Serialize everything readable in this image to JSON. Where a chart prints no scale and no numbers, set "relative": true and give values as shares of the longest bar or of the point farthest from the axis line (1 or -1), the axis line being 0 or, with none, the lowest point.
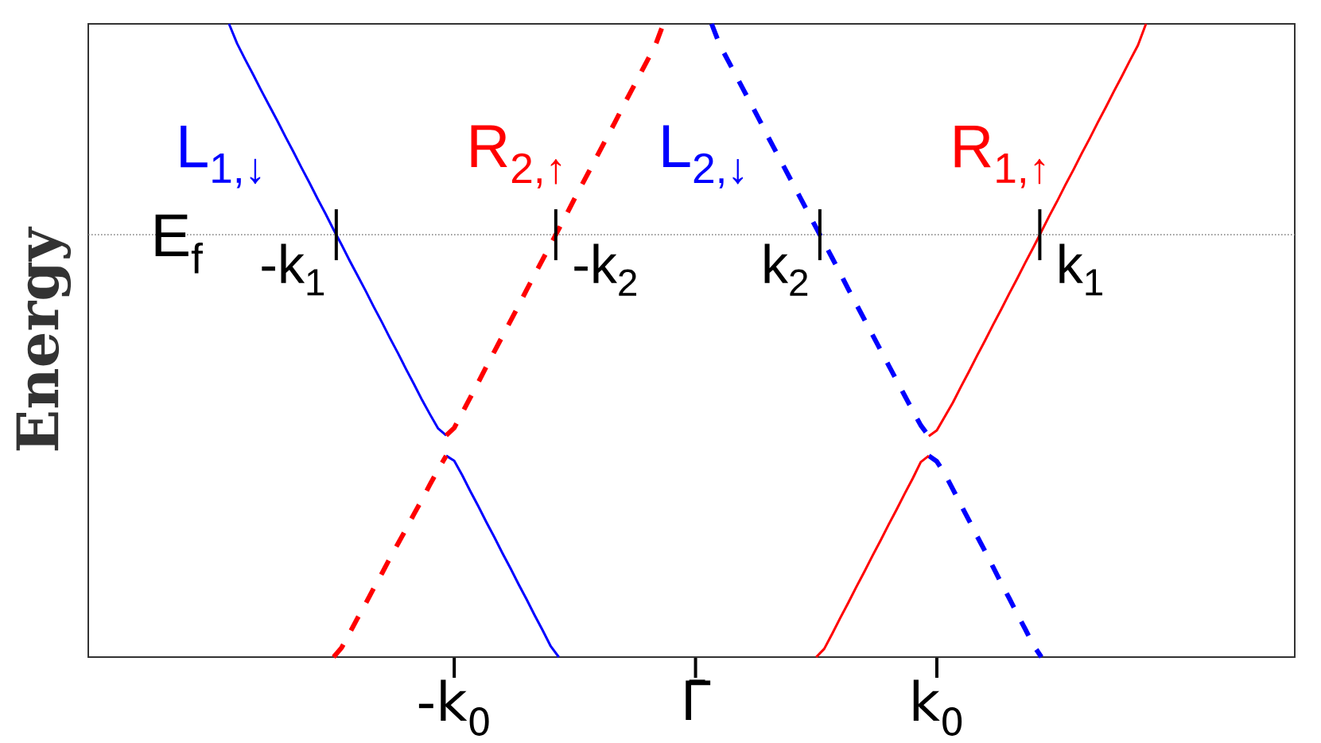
{
  "chart_data": {
    "type": "line",
    "relative": true,
    "ylabel": "Energy",
    "categories": [
      null,
      null,
      null,
      null,
      null,
      null,
      null,
      null,
      null,
      null,
      null,
      null,
      null,
      null,
      null,
      null,
      null,
      null,
      null,
      null,
      null,
      null,
      null,
      null,
      null,
      null,
      null,
      null,
      null,
      null,
      null,
      null,
      null,
      null,
      null,
      null,
      null,
      null,
      null,
      null,
      null,
      null,
      null,
      null,
      null,
      "-k$_{0}$",
      null,
      null,
      null,
      null,
      null,
      null,
      null,
      null,
      null,
      null,
      null,
      null,
      null,
      null,
      null,
      null,
      null,
      null,
      null,
      null,
      null,
      null,
      null,
      null,
      null,
      null,
      null,
      null,
      null,
      "Γ̄",
      null,
      null,
      null,
      null,
      null,
      null,
      null,
      null,
      null,
      null,
      null,
      null,
      null,
      null,
      null,
      null,
      null,
      null,
      null,
      null,
      null,
      null,
      null,
      null,
      null,
      null,
      null,
      null,
      null,
      "k$_{0}$",
      null,
      null,
      null,
      null,
      null,
      null,
      null,
      null,
      null,
      null,
      null,
      null,
      null,
      null,
      null,
      null,
      null,
      null,
      null,
      null,
      null,
      null,
      null,
      null,
      null,
      null,
      null,
      null,
      null,
      null,
      null,
      null,
      null,
      null,
      null,
      null,
      null,
      null,
      null,
      null,
      null,
      null,
      null,
      null
    ],
    "series": [
      {
        "name": "L$_{1,↓}$",
        "color": "#0000ff",
        "line_style": "solid",
        "values": [
          null,
          null,
          null,
          null,
          null,
          null,
          null,
          null,
          null,
          null,
          null,
          null,
          null,
          null,
          null,
          null,
          null,
          1.0,
          0.969,
          0.944,
          0.92,
          0.895,
          0.871,
          0.847,
          0.822,
          0.798,
          0.773,
          0.749,
          0.724,
          0.7,
          0.675,
          0.651,
          0.626,
          0.602,
          0.578,
          0.553,
          0.529,
          0.504,
          0.48,
          0.455,
          0.431,
          0.406,
          0.383,
          0.361,
          0.35,
          null,
          null,
          null,
          null,
          null,
          null,
          null,
          null,
          null,
          null,
          null,
          null,
          null,
          null,
          null,
          null,
          null,
          null,
          null,
          null,
          null,
          null,
          null,
          null,
          null,
          null,
          null,
          null,
          null,
          null,
          null,
          null,
          null,
          null,
          null,
          null,
          null,
          null,
          null,
          null,
          null,
          null,
          null,
          null,
          null,
          null,
          null,
          null,
          null,
          null,
          null,
          null,
          null,
          null,
          null,
          null,
          null,
          null,
          null,
          null,
          null,
          null,
          null,
          null,
          null,
          null,
          null,
          null,
          null,
          null,
          null,
          null,
          null,
          null,
          null,
          null,
          null,
          null,
          null,
          null,
          null,
          null,
          null,
          null,
          null,
          null,
          null,
          null,
          null,
          null,
          null,
          null,
          null,
          null,
          null,
          null,
          null,
          null,
          null,
          null,
          null,
          null,
          null,
          null,
          null
        ]
      },
      {
        "color": "#0000ff",
        "line_style": "solid",
        "values": [
          null,
          null,
          null,
          null,
          null,
          null,
          null,
          null,
          null,
          null,
          null,
          null,
          null,
          null,
          null,
          null,
          null,
          null,
          null,
          null,
          null,
          null,
          null,
          null,
          null,
          null,
          null,
          null,
          null,
          null,
          null,
          null,
          null,
          null,
          null,
          null,
          null,
          null,
          null,
          null,
          null,
          null,
          null,
          null,
          0.318,
          0.31,
          0.287,
          0.262,
          0.238,
          0.213,
          0.189,
          0.164,
          0.14,
          0.115,
          0.091,
          0.066,
          0.042,
          0.017,
          0,
          null,
          null,
          null,
          null,
          null,
          null,
          null,
          null,
          null,
          null,
          null,
          null,
          null,
          null,
          null,
          null,
          null,
          null,
          null,
          null,
          null,
          null,
          null,
          null,
          null,
          null,
          null,
          null,
          null,
          null,
          null,
          null,
          null,
          null,
          null,
          null,
          null,
          null,
          null,
          null,
          null,
          null,
          null,
          null,
          null,
          null,
          null,
          null,
          null,
          null,
          null,
          null,
          null,
          null,
          null,
          null,
          null,
          null,
          null,
          null,
          null,
          null,
          null,
          null,
          null,
          null,
          null,
          null,
          null,
          null,
          null,
          null,
          null,
          null,
          null,
          null,
          null,
          null,
          null,
          null,
          null,
          null,
          null,
          null,
          null,
          null,
          null,
          null,
          null,
          null,
          null
        ]
      },
      {
        "name": "R$_{2,↑}$",
        "color": "#ff0000",
        "line_style": "dashed",
        "values": [
          null,
          null,
          null,
          null,
          null,
          null,
          null,
          null,
          null,
          null,
          null,
          null,
          null,
          null,
          null,
          null,
          null,
          null,
          null,
          null,
          null,
          null,
          null,
          null,
          null,
          null,
          null,
          null,
          null,
          null,
          null,
          null,
          null,
          null,
          null,
          null,
          null,
          null,
          null,
          null,
          null,
          null,
          null,
          null,
          0.35,
          0.362,
          0.386,
          0.41,
          0.434,
          0.459,
          0.483,
          0.507,
          0.531,
          0.555,
          0.58,
          0.604,
          0.628,
          0.652,
          0.676,
          0.7,
          0.725,
          0.749,
          0.773,
          0.797,
          0.821,
          0.845,
          0.87,
          0.894,
          0.918,
          0.942,
          0.966,
          1.0,
          null,
          null,
          null,
          null,
          null,
          null,
          null,
          null,
          null,
          null,
          null,
          null,
          null,
          null,
          null,
          null,
          null,
          null,
          null,
          null,
          null,
          null,
          null,
          null,
          null,
          null,
          null,
          null,
          null,
          null,
          null,
          null,
          null,
          null,
          null,
          null,
          null,
          null,
          null,
          null,
          null,
          null,
          null,
          null,
          null,
          null,
          null,
          null,
          null,
          null,
          null,
          null,
          null,
          null,
          null,
          null,
          null,
          null,
          null,
          null,
          null,
          null,
          null,
          null,
          null,
          null,
          null,
          null,
          null,
          null,
          null,
          null,
          null,
          null,
          null,
          null,
          null,
          null
        ]
      },
      {
        "color": "#ff0000",
        "line_style": "dashed",
        "values": [
          null,
          null,
          null,
          null,
          null,
          null,
          null,
          null,
          null,
          null,
          null,
          null,
          null,
          null,
          null,
          null,
          null,
          null,
          null,
          null,
          null,
          null,
          null,
          null,
          null,
          null,
          null,
          null,
          null,
          null,
          0,
          0.015,
          0.038,
          0.062,
          0.085,
          0.109,
          0.132,
          0.156,
          0.179,
          0.202,
          0.226,
          0.249,
          0.273,
          0.296,
          0.318,
          null,
          null,
          null,
          null,
          null,
          null,
          null,
          null,
          null,
          null,
          null,
          null,
          null,
          null,
          null,
          null,
          null,
          null,
          null,
          null,
          null,
          null,
          null,
          null,
          null,
          null,
          null,
          null,
          null,
          null,
          null,
          null,
          null,
          null,
          null,
          null,
          null,
          null,
          null,
          null,
          null,
          null,
          null,
          null,
          null,
          null,
          null,
          null,
          null,
          null,
          null,
          null,
          null,
          null,
          null,
          null,
          null,
          null,
          null,
          null,
          null,
          null,
          null,
          null,
          null,
          null,
          null,
          null,
          null,
          null,
          null,
          null,
          null,
          null,
          null,
          null,
          null,
          null,
          null,
          null,
          null,
          null,
          null,
          null,
          null,
          null,
          null,
          null,
          null,
          null,
          null,
          null,
          null,
          null,
          null,
          null,
          null,
          null,
          null,
          null,
          null,
          null,
          null,
          null,
          null
        ]
      },
      {
        "name": "L$_{2,↓}$",
        "color": "#0000ff",
        "line_style": "dashed",
        "values": [
          null,
          null,
          null,
          null,
          null,
          null,
          null,
          null,
          null,
          null,
          null,
          null,
          null,
          null,
          null,
          null,
          null,
          null,
          null,
          null,
          null,
          null,
          null,
          null,
          null,
          null,
          null,
          null,
          null,
          null,
          null,
          null,
          null,
          null,
          null,
          null,
          null,
          null,
          null,
          null,
          null,
          null,
          null,
          null,
          null,
          null,
          null,
          null,
          null,
          null,
          null,
          null,
          null,
          null,
          null,
          null,
          null,
          null,
          null,
          null,
          null,
          null,
          null,
          null,
          null,
          null,
          null,
          null,
          null,
          null,
          null,
          null,
          null,
          null,
          null,
          null,
          null,
          1.0,
          0.967,
          0.943,
          0.919,
          0.895,
          0.871,
          0.847,
          0.822,
          0.798,
          0.774,
          0.75,
          0.726,
          0.702,
          0.678,
          0.654,
          0.63,
          0.606,
          0.581,
          0.557,
          0.533,
          0.509,
          0.485,
          0.461,
          0.437,
          0.413,
          0.389,
          0.366,
          0.349,
          null,
          null,
          null,
          null,
          null,
          null,
          null,
          null,
          null,
          null,
          null,
          null,
          null,
          null,
          null,
          null,
          null,
          null,
          null,
          null,
          null,
          null,
          null,
          null,
          null,
          null,
          null,
          null,
          null,
          null,
          null,
          null,
          null,
          null,
          null,
          null,
          null,
          null,
          null,
          null,
          null,
          null,
          null,
          null,
          null
        ]
      },
      {
        "color": "#0000ff",
        "line_style": "dashed",
        "values": [
          null,
          null,
          null,
          null,
          null,
          null,
          null,
          null,
          null,
          null,
          null,
          null,
          null,
          null,
          null,
          null,
          null,
          null,
          null,
          null,
          null,
          null,
          null,
          null,
          null,
          null,
          null,
          null,
          null,
          null,
          null,
          null,
          null,
          null,
          null,
          null,
          null,
          null,
          null,
          null,
          null,
          null,
          null,
          null,
          null,
          null,
          null,
          null,
          null,
          null,
          null,
          null,
          null,
          null,
          null,
          null,
          null,
          null,
          null,
          null,
          null,
          null,
          null,
          null,
          null,
          null,
          null,
          null,
          null,
          null,
          null,
          null,
          null,
          null,
          null,
          null,
          null,
          null,
          null,
          null,
          null,
          null,
          null,
          null,
          null,
          null,
          null,
          null,
          null,
          null,
          null,
          null,
          null,
          null,
          null,
          null,
          null,
          null,
          null,
          null,
          null,
          null,
          null,
          null,
          0.318,
          0.309,
          0.289,
          0.265,
          0.24,
          0.216,
          0.191,
          0.167,
          0.142,
          0.117,
          0.093,
          0.068,
          0.044,
          0.019,
          0,
          null,
          null,
          null,
          null,
          null,
          null,
          null,
          null,
          null,
          null,
          null,
          null,
          null,
          null,
          null,
          null,
          null,
          null,
          null,
          null,
          null,
          null,
          null,
          null,
          null,
          null,
          null,
          null,
          null,
          null,
          null
        ]
      },
      {
        "name": "R$_{1,↑}$",
        "color": "#ff0000",
        "line_style": "solid",
        "values": [
          null,
          null,
          null,
          null,
          null,
          null,
          null,
          null,
          null,
          null,
          null,
          null,
          null,
          null,
          null,
          null,
          null,
          null,
          null,
          null,
          null,
          null,
          null,
          null,
          null,
          null,
          null,
          null,
          null,
          null,
          null,
          null,
          null,
          null,
          null,
          null,
          null,
          null,
          null,
          null,
          null,
          null,
          null,
          null,
          null,
          null,
          null,
          null,
          null,
          null,
          null,
          null,
          null,
          null,
          null,
          null,
          null,
          null,
          null,
          null,
          null,
          null,
          null,
          null,
          null,
          null,
          null,
          null,
          null,
          null,
          null,
          null,
          null,
          null,
          null,
          null,
          null,
          null,
          null,
          null,
          null,
          null,
          null,
          null,
          null,
          null,
          null,
          null,
          null,
          null,
          null,
          null,
          null,
          null,
          null,
          null,
          null,
          null,
          null,
          null,
          null,
          null,
          null,
          null,
          0.349,
          0.358,
          0.38,
          0.402,
          0.427,
          0.451,
          0.476,
          0.5,
          0.525,
          0.549,
          0.574,
          0.598,
          0.623,
          0.647,
          0.672,
          0.697,
          0.721,
          0.746,
          0.77,
          0.795,
          0.819,
          0.844,
          0.868,
          0.893,
          0.917,
          0.942,
          0.966,
          1.0,
          null,
          null,
          null,
          null,
          null,
          null,
          null,
          null,
          null,
          null,
          null,
          null,
          null,
          null,
          null,
          null,
          null,
          null
        ]
      },
      {
        "color": "#ff0000",
        "line_style": "solid",
        "values": [
          null,
          null,
          null,
          null,
          null,
          null,
          null,
          null,
          null,
          null,
          null,
          null,
          null,
          null,
          null,
          null,
          null,
          null,
          null,
          null,
          null,
          null,
          null,
          null,
          null,
          null,
          null,
          null,
          null,
          null,
          null,
          null,
          null,
          null,
          null,
          null,
          null,
          null,
          null,
          null,
          null,
          null,
          null,
          null,
          null,
          null,
          null,
          null,
          null,
          null,
          null,
          null,
          null,
          null,
          null,
          null,
          null,
          null,
          null,
          null,
          null,
          null,
          null,
          null,
          null,
          null,
          null,
          null,
          null,
          null,
          null,
          null,
          null,
          null,
          null,
          null,
          null,
          null,
          null,
          null,
          null,
          null,
          null,
          null,
          null,
          null,
          null,
          null,
          null,
          null,
          0,
          0.013,
          0.037,
          0.062,
          0.086,
          0.111,
          0.135,
          0.16,
          0.184,
          0.209,
          0.233,
          0.258,
          0.282,
          0.308,
          0.318,
          null,
          null,
          null,
          null,
          null,
          null,
          null,
          null,
          null,
          null,
          null,
          null,
          null,
          null,
          null,
          null,
          null,
          null,
          null,
          null,
          null,
          null,
          null,
          null,
          null,
          null,
          null,
          null,
          null,
          null,
          null,
          null,
          null,
          null,
          null,
          null,
          null,
          null,
          null,
          null,
          null,
          null,
          null,
          null,
          null
        ]
      }
    ],
    "ref_lines": [
      {
        "axis": "y",
        "value": 0.667,
        "label": "E$_{f}$",
        "color": "#808080",
        "line_style": "dotted"
      }
    ],
    "annotations": [
      {
        "text": "-k$_{1}$",
        "y": 0.667
      },
      {
        "text": "-k$_{2}$",
        "y": 0.667
      },
      {
        "text": "k$_{2}$",
        "y": 0.667
      },
      {
        "text": "k$_{1}$",
        "y": 0.667
      }
    ]
  }
}
